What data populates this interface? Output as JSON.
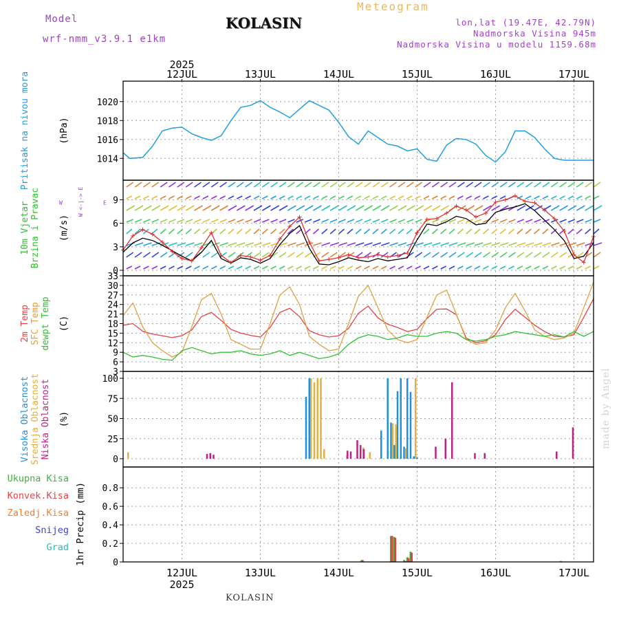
{
  "header": {
    "model_label": "Model",
    "model_name": "wrf-nmm_v3.9.1 e1km",
    "station": "KOLASIN",
    "product": "Meteogram",
    "lonlat": "lon,lat (19.47E, 42.79N)",
    "elevation": "Nadmorska Visina 945m",
    "model_elevation": "Nadmorska Visina u modelu 1159.68m"
  },
  "footer": {
    "station": "KOLASIN",
    "credit": "made by Angel"
  },
  "colors": {
    "pressure": "#1ea0e0",
    "temp2m": "#e84040",
    "sfc_temp": "#e0a040",
    "dewpt": "#30c030",
    "cloud_high": "#1e90e0",
    "cloud_mid": "#e0b040",
    "cloud_low": "#c02080",
    "precip_total": "#40b040",
    "precip_conv": "#e84040",
    "precip_frz": "#f08030",
    "precip_snow": "#4040e0",
    "precip_hail": "#20c0c0",
    "wind_speed": "#000000",
    "wind_gust": "#e03030"
  },
  "chart_data": {
    "type": "line",
    "x_axis": {
      "days": [
        "12JUL",
        "13JUL",
        "14JUL",
        "15JUL",
        "16JUL",
        "17JUL"
      ],
      "year": "2025",
      "range_hours": [
        -18,
        126
      ]
    },
    "panels": [
      {
        "id": "pressure",
        "ylabels": [
          "Pritisak na nivou mora",
          "(hPa)"
        ],
        "yticks": [
          1014,
          1016,
          1018,
          1020
        ],
        "ylim": [
          1013,
          1021
        ],
        "series": [
          {
            "key": "pressure",
            "x": [
              -18,
              -16,
              -12,
              -9,
              -6,
              -3,
              0,
              3,
              6,
              9,
              12,
              15,
              18,
              21,
              24,
              27,
              30,
              33,
              36,
              39,
              42,
              45,
              48,
              51,
              54,
              57,
              60,
              63,
              66,
              69,
              72,
              75,
              78,
              81,
              84,
              87,
              90,
              93,
              96,
              99,
              102,
              105,
              108,
              111,
              114,
              117,
              120,
              123,
              126
            ],
            "y": [
              1014.6,
              1014.0,
              1014.1,
              1015.3,
              1016.9,
              1017.2,
              1017.3,
              1016.6,
              1016.2,
              1015.9,
              1016.4,
              1018.0,
              1019.4,
              1019.6,
              1020.1,
              1019.4,
              1018.9,
              1018.3,
              1019.2,
              1020.1,
              1019.6,
              1019.1,
              1017.8,
              1016.3,
              1015.5,
              1016.9,
              1016.2,
              1015.5,
              1015.3,
              1014.8,
              1015.0,
              1013.9,
              1013.7,
              1015.4,
              1016.1,
              1016.0,
              1015.5,
              1014.3,
              1013.6,
              1014.7,
              1016.9,
              1016.9,
              1016.2,
              1015.0,
              1014.0,
              1013.8,
              1013.8,
              1013.8,
              1013.8
            ]
          }
        ]
      },
      {
        "id": "wind",
        "ylabels": [
          "10m Vjetar",
          "Brzina i Pravac",
          "(m/s)"
        ],
        "compass": "W <-|-> E",
        "compass_ns": "N <-|-> S",
        "yticks": [
          0,
          3,
          6,
          9
        ],
        "ylim": [
          0,
          11.5
        ],
        "series": [
          {
            "key": "wind_speed",
            "x": [
              -18,
              -15,
              -12,
              -9,
              -6,
              -3,
              0,
              3,
              6,
              9,
              12,
              15,
              18,
              21,
              24,
              27,
              30,
              33,
              36,
              39,
              42,
              45,
              48,
              51,
              54,
              57,
              60,
              63,
              66,
              69,
              72,
              75,
              78,
              81,
              84,
              87,
              90,
              93,
              96,
              99,
              102,
              105,
              108,
              111,
              114,
              117,
              120,
              123,
              126
            ],
            "y": [
              2.3,
              3.5,
              4.1,
              3.8,
              3.2,
              2.5,
              1.8,
              1.2,
              2.3,
              3.8,
              1.5,
              0.9,
              1.6,
              1.4,
              0.9,
              1.5,
              3.3,
              4.7,
              5.7,
              2.8,
              0.8,
              0.7,
              1.1,
              1.6,
              1.3,
              1.1,
              1.5,
              1.2,
              1.4,
              1.6,
              3.9,
              5.9,
              5.7,
              6.2,
              6.9,
              6.6,
              5.8,
              6.0,
              7.4,
              7.8,
              8.1,
              8.5,
              7.6,
              6.4,
              5.2,
              3.8,
              1.5,
              1.8,
              3.5
            ]
          },
          {
            "key": "wind_gust",
            "x": [
              -18,
              -15,
              -12,
              -9,
              -6,
              -3,
              0,
              3,
              6,
              9,
              12,
              15,
              18,
              21,
              24,
              27,
              30,
              33,
              36,
              39,
              42,
              45,
              48,
              51,
              54,
              57,
              60,
              63,
              66,
              69,
              72,
              75,
              78,
              81,
              84,
              87,
              90,
              93,
              96,
              99,
              102,
              105,
              108,
              111,
              114,
              117,
              120,
              123,
              126
            ],
            "y": [
              2.6,
              4.4,
              5.2,
              4.6,
              3.6,
              2.4,
              1.5,
              1.2,
              2.9,
              4.8,
              1.9,
              1.0,
              1.9,
              1.7,
              1.3,
              1.9,
              4.0,
              5.6,
              6.8,
              3.6,
              1.2,
              1.4,
              1.6,
              2.0,
              1.6,
              1.7,
              2.0,
              1.7,
              1.9,
              2.2,
              4.8,
              6.5,
              6.6,
              7.3,
              8.2,
              7.7,
              6.8,
              7.3,
              8.7,
              9.0,
              9.5,
              8.8,
              8.6,
              7.7,
              6.6,
              5.0,
              2.0,
              1.0,
              4.3
            ]
          }
        ]
      },
      {
        "id": "temperature",
        "ylabels": [
          "2m Temp",
          "SFC Temp",
          "dewpt Temp",
          "(C)"
        ],
        "yticks": [
          3,
          6,
          9,
          12,
          15,
          18,
          21,
          24,
          27,
          30,
          33
        ],
        "ylim": [
          3,
          33
        ],
        "series": [
          {
            "key": "temp2m",
            "name": "2m Temp",
            "x": [
              -18,
              -15,
              -12,
              -9,
              -6,
              -3,
              0,
              3,
              6,
              9,
              12,
              15,
              18,
              21,
              24,
              27,
              30,
              33,
              36,
              39,
              42,
              45,
              48,
              51,
              54,
              57,
              60,
              63,
              66,
              69,
              72,
              75,
              78,
              81,
              84,
              87,
              90,
              93,
              96,
              99,
              102,
              105,
              108,
              111,
              114,
              117,
              120,
              123,
              126
            ],
            "y": [
              17.5,
              18.0,
              15.6,
              14.7,
              14.2,
              13.6,
              14.2,
              16.0,
              20.2,
              21.5,
              19.0,
              16.2,
              15.0,
              14.3,
              13.8,
              16.8,
              21.5,
              22.8,
              20.2,
              15.8,
              14.5,
              13.8,
              14.2,
              16.5,
              21.2,
              23.5,
              19.8,
              17.8,
              16.8,
              15.5,
              16.2,
              19.6,
              22.5,
              22.6,
              20.8,
              13.5,
              12.0,
              12.6,
              14.5,
              19.3,
              22.5,
              20.0,
              17.5,
              15.5,
              14.0,
              13.8,
              14.5,
              20.0,
              25.8
            ]
          },
          {
            "key": "sfc_temp",
            "name": "SFC Temp",
            "x": [
              -18,
              -15,
              -12,
              -9,
              -6,
              -3,
              0,
              3,
              6,
              9,
              12,
              15,
              18,
              21,
              24,
              27,
              30,
              33,
              36,
              39,
              42,
              45,
              48,
              51,
              54,
              57,
              60,
              63,
              66,
              69,
              72,
              75,
              78,
              81,
              84,
              87,
              90,
              93,
              96,
              99,
              102,
              105,
              108,
              111,
              114,
              117,
              120,
              123,
              126
            ],
            "y": [
              20.5,
              24.5,
              17.0,
              12.0,
              9.5,
              7.5,
              9.0,
              17.0,
              25.5,
              27.5,
              21.0,
              13.0,
              11.5,
              10.0,
              10.0,
              18.0,
              27.0,
              29.5,
              24.0,
              14.0,
              11.5,
              9.5,
              10.0,
              18.0,
              26.5,
              30.0,
              23.0,
              16.0,
              13.0,
              12.0,
              13.0,
              20.0,
              27.0,
              28.5,
              21.0,
              13.0,
              11.5,
              12.0,
              16.0,
              23.0,
              27.5,
              22.0,
              16.0,
              14.0,
              13.0,
              13.5,
              15.0,
              23.0,
              31.0
            ]
          },
          {
            "key": "dewpt",
            "name": "dewpt Temp",
            "x": [
              -18,
              -15,
              -12,
              -9,
              -6,
              -3,
              0,
              3,
              6,
              9,
              12,
              15,
              18,
              21,
              24,
              27,
              30,
              33,
              36,
              39,
              42,
              45,
              48,
              51,
              54,
              57,
              60,
              63,
              66,
              69,
              72,
              75,
              78,
              81,
              84,
              87,
              90,
              93,
              96,
              99,
              102,
              105,
              108,
              111,
              114,
              117,
              120,
              123,
              126
            ],
            "y": [
              9.0,
              7.5,
              8.0,
              7.5,
              6.8,
              6.5,
              9.5,
              10.5,
              9.5,
              8.5,
              9.0,
              9.0,
              9.5,
              8.5,
              8.0,
              8.5,
              9.5,
              8.0,
              9.0,
              8.0,
              7.0,
              7.5,
              8.5,
              11.5,
              13.5,
              14.5,
              14.0,
              13.0,
              13.5,
              14.5,
              14.0,
              14.0,
              15.0,
              15.5,
              15.0,
              13.0,
              12.5,
              13.0,
              14.0,
              14.5,
              15.5,
              15.0,
              14.5,
              14.0,
              14.5,
              13.8,
              15.5,
              14.0,
              15.5
            ]
          }
        ]
      },
      {
        "id": "clouds",
        "type": "bar",
        "ylabels": [
          "Visoka Oblacnost",
          "Srednja Oblacnost",
          "Niska Oblacnost",
          "(%)"
        ],
        "yticks": [
          0,
          25,
          50,
          75,
          100
        ],
        "ylim": [
          0,
          100
        ],
        "series": [
          {
            "key": "cloud_high",
            "name": "Visoka Oblacnost",
            "x": [
              38,
              39,
              61,
              63,
              64,
              65,
              66,
              67,
              68,
              69,
              70,
              71,
              72
            ],
            "y": [
              77,
              100,
              35,
              100,
              45,
              17,
              84,
              100,
              15,
              100,
              83,
              3,
              2
            ]
          },
          {
            "key": "cloud_mid",
            "name": "Srednja Oblacnost",
            "x": [
              -17,
              39,
              40,
              41,
              42,
              43,
              50,
              55,
              57,
              64,
              65,
              68,
              71
            ],
            "y": [
              8,
              100,
              95,
              100,
              100,
              12,
              5,
              14,
              8,
              44,
              43,
              13,
              100
            ]
          },
          {
            "key": "cloud_low",
            "name": "Niska Oblacnost",
            "x": [
              8,
              9,
              10,
              51,
              52,
              54,
              55,
              56,
              78,
              81,
              83,
              90,
              93,
              115,
              120
            ],
            "y": [
              6,
              7,
              5,
              10,
              9,
              23,
              17,
              12,
              15,
              25,
              95,
              7,
              7,
              9,
              39
            ]
          }
        ]
      },
      {
        "id": "precip",
        "type": "bar",
        "ylabels": [
          "Ukupna Kisa",
          "Konvek.Kisa",
          "Zaledj.Kisa",
          "Snijeg",
          "Grad",
          "1hr Precip (mm)"
        ],
        "yticks": [
          0,
          0.2,
          0.4,
          0.6,
          0.8
        ],
        "ylim": [
          0,
          0.95
        ],
        "series": [
          {
            "key": "precip_total",
            "name": "Ukupna Kisa",
            "x": [
              55,
              64,
              65,
              68,
              69,
              70,
              116
            ],
            "y": [
              0.02,
              0.28,
              0.27,
              0.02,
              0.05,
              0.11,
              0.01
            ]
          },
          {
            "key": "precip_conv",
            "name": "Konvek.Kisa",
            "x": [
              55,
              64,
              65,
              68,
              69,
              70
            ],
            "y": [
              0.02,
              0.28,
              0.26,
              0.01,
              0.04,
              0.1
            ]
          }
        ]
      }
    ]
  }
}
